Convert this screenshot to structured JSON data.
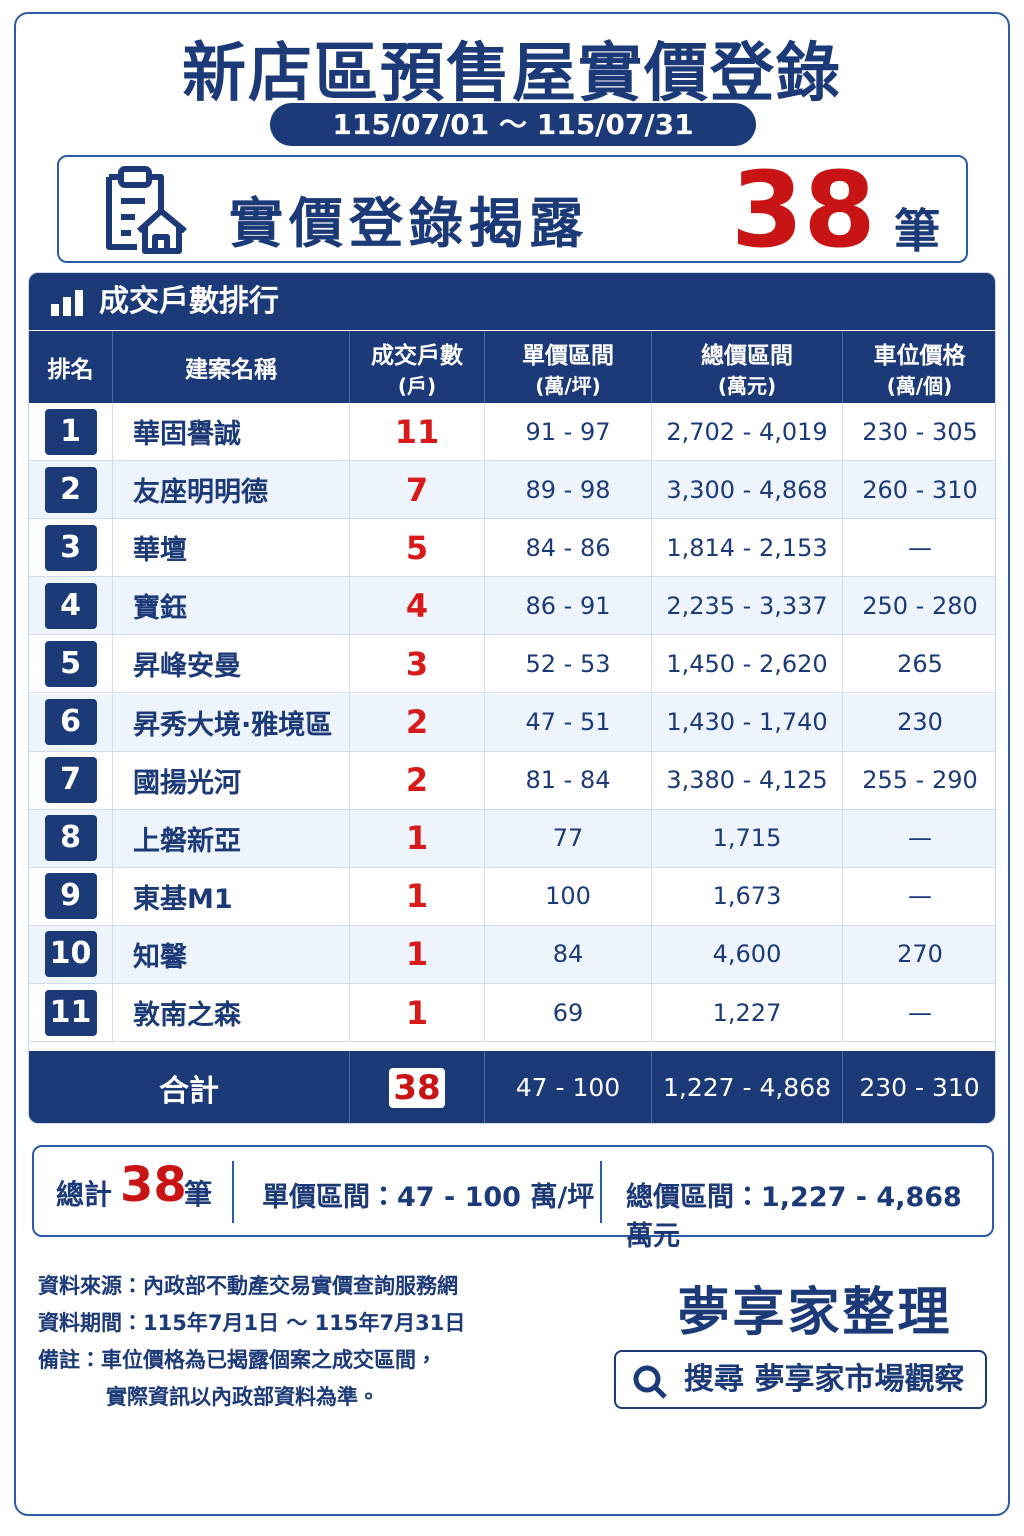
{
  "header": {
    "title": "新店區預售屋實價登錄",
    "period": "115/07/01 ～ 115/07/31"
  },
  "banner": {
    "label": "實價登錄揭露",
    "count": "38",
    "unit": "筆"
  },
  "table": {
    "title": "成交戶數排行",
    "columns": [
      {
        "label": "排名"
      },
      {
        "label": "建案名稱"
      },
      {
        "label": "成交戶數",
        "unit": "(戶)"
      },
      {
        "label": "單價區間",
        "unit": "(萬/坪)"
      },
      {
        "label": "總價區間",
        "unit": "(萬元)"
      },
      {
        "label": "車位價格",
        "unit": "(萬/個)"
      }
    ],
    "rows": [
      [
        "1",
        "華固譽誠",
        "11",
        "91 - 97",
        "2,702 - 4,019",
        "230 - 305"
      ],
      [
        "2",
        "友座明明德",
        "7",
        "89 - 98",
        "3,300 - 4,868",
        "260 - 310"
      ],
      [
        "3",
        "華壇",
        "5",
        "84 - 86",
        "1,814 - 2,153",
        "—"
      ],
      [
        "4",
        "寶鈺",
        "4",
        "86 - 91",
        "2,235 - 3,337",
        "250 - 280"
      ],
      [
        "5",
        "昇峰安曼",
        "3",
        "52 - 53",
        "1,450 - 2,620",
        "265"
      ],
      [
        "6",
        "昇秀大境·雅境區",
        "2",
        "47 - 51",
        "1,430 - 1,740",
        "230"
      ],
      [
        "7",
        "國揚光河",
        "2",
        "81 - 84",
        "3,380 - 4,125",
        "255 - 290"
      ],
      [
        "8",
        "上磐新亞",
        "1",
        "77",
        "1,715",
        "—"
      ],
      [
        "9",
        "東基M1",
        "1",
        "100",
        "1,673",
        "—"
      ],
      [
        "10",
        "知馨",
        "1",
        "84",
        "4,600",
        "270"
      ],
      [
        "11",
        "敦南之森",
        "1",
        "69",
        "1,227",
        "—"
      ]
    ],
    "total": [
      "合計",
      "38",
      "47 - 100",
      "1,227 - 4,868",
      "230 - 310"
    ]
  },
  "summary": {
    "total_label": "總計",
    "total_count": "38",
    "total_unit": "筆",
    "unit_price": "單價區間：47 - 100 萬/坪",
    "total_price": "總價區間：1,227 - 4,868 萬元"
  },
  "notes": [
    "資料來源：內政部不動產交易實價查詢服務網",
    "資料期間：115年7月1日 ～ 115年7月31日",
    "備註：車位價格為已揭露個案之成交區間，",
    "實際資訊以內政部資料為準。"
  ],
  "brand": {
    "name": "夢享家整理",
    "search": "搜尋 夢享家市場觀察"
  }
}
